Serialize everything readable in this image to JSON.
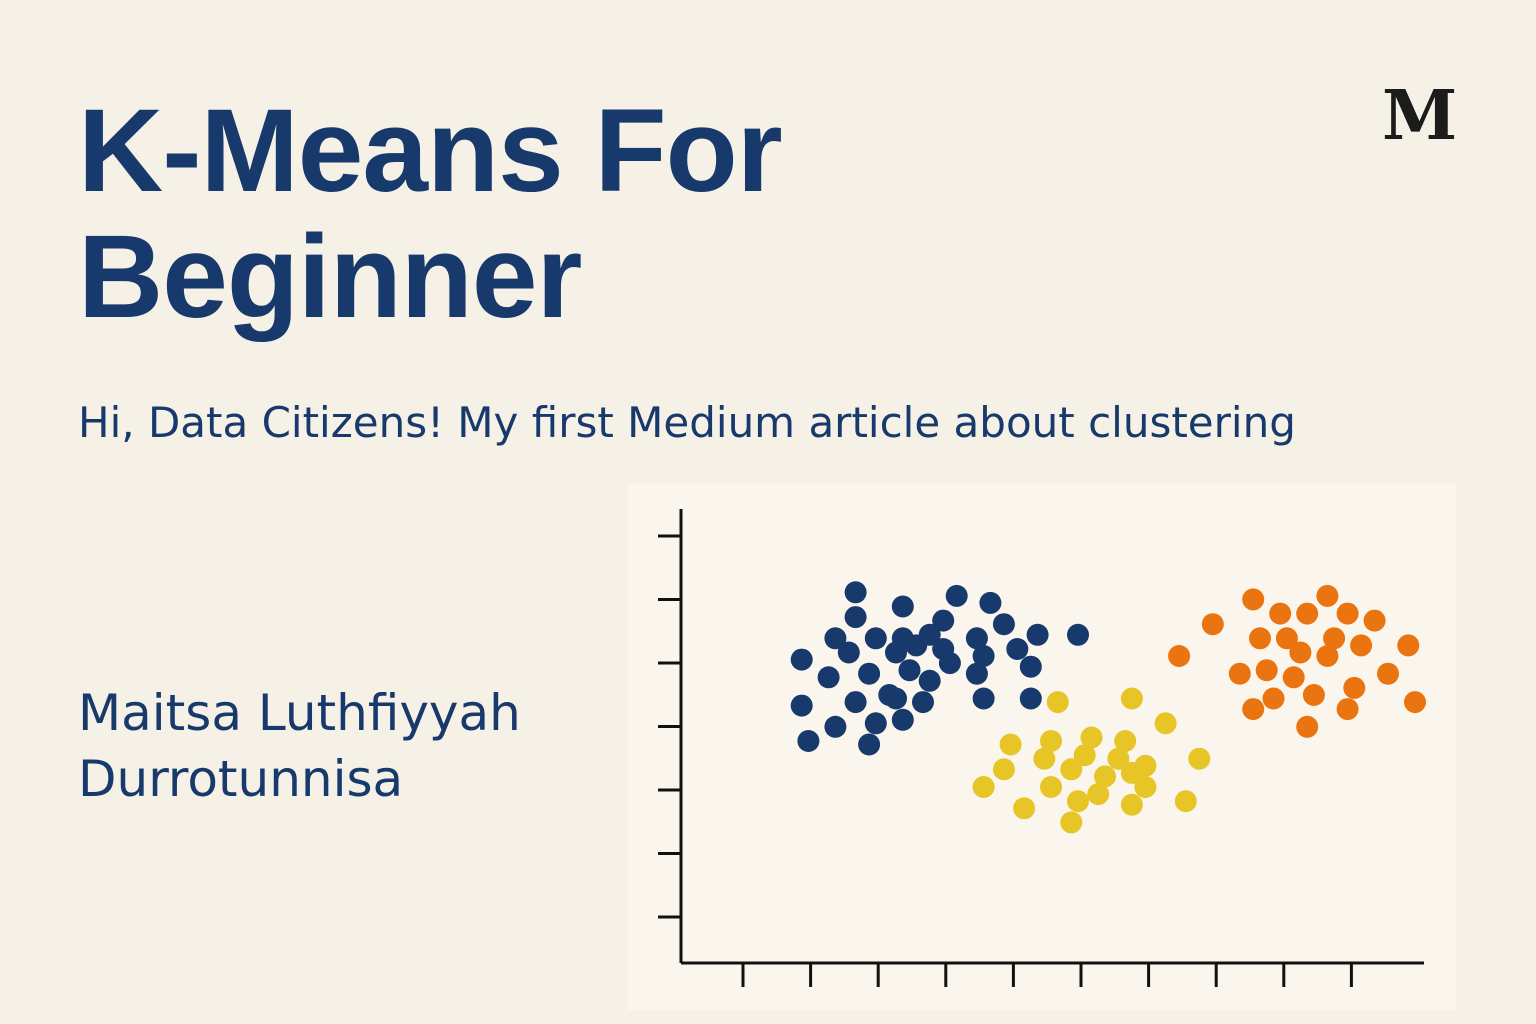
{
  "header": {
    "title_line1": "K-Means For",
    "title_line2": "Beginner",
    "subtitle": "Hi, Data Citizens! My first Medium article about clustering",
    "logo_letter": "M"
  },
  "author": {
    "line1": "Maitsa Luthfiyyah",
    "line2": "Durrotunnisa"
  },
  "colors": {
    "background": "#f6f1e7",
    "text": "#17396b",
    "cluster_navy": "#17396b",
    "cluster_yellow": "#e8c527",
    "cluster_orange": "#ea740f"
  },
  "chart_data": {
    "type": "scatter",
    "xlim": [
      0,
      100
    ],
    "ylim": [
      0,
      100
    ],
    "grid": false,
    "legend": "none",
    "series": [
      {
        "color": "#17396b",
        "points": [
          [
            17,
            92
          ],
          [
            24,
            88
          ],
          [
            32,
            91
          ],
          [
            37,
            89
          ],
          [
            17,
            85
          ],
          [
            30,
            84
          ],
          [
            39,
            83
          ],
          [
            14,
            79
          ],
          [
            20,
            79
          ],
          [
            24,
            79
          ],
          [
            28,
            80
          ],
          [
            35,
            79
          ],
          [
            44,
            80
          ],
          [
            50,
            80
          ],
          [
            9,
            73
          ],
          [
            16,
            75
          ],
          [
            23,
            75
          ],
          [
            26,
            77
          ],
          [
            30,
            76
          ],
          [
            36,
            74
          ],
          [
            41,
            76
          ],
          [
            31,
            72
          ],
          [
            13,
            68
          ],
          [
            19,
            69
          ],
          [
            25,
            70
          ],
          [
            28,
            67
          ],
          [
            35,
            69
          ],
          [
            43,
            71
          ],
          [
            22,
            63
          ],
          [
            9,
            60
          ],
          [
            17,
            61
          ],
          [
            23,
            62
          ],
          [
            27,
            61
          ],
          [
            36,
            62
          ],
          [
            43,
            62
          ],
          [
            24,
            56
          ],
          [
            14,
            54
          ],
          [
            20,
            55
          ],
          [
            10,
            50
          ],
          [
            19,
            49
          ]
        ]
      },
      {
        "color": "#e8c527",
        "points": [
          [
            47,
            61
          ],
          [
            58,
            62
          ],
          [
            63,
            55
          ],
          [
            40,
            49
          ],
          [
            46,
            50
          ],
          [
            52,
            51
          ],
          [
            57,
            50
          ],
          [
            45,
            45
          ],
          [
            51,
            46
          ],
          [
            56,
            45
          ],
          [
            68,
            45
          ],
          [
            60,
            43
          ],
          [
            39,
            42
          ],
          [
            49,
            42
          ],
          [
            54,
            40
          ],
          [
            58,
            41
          ],
          [
            36,
            37
          ],
          [
            46,
            37
          ],
          [
            60,
            37
          ],
          [
            53,
            35
          ],
          [
            42,
            31
          ],
          [
            50,
            33
          ],
          [
            58,
            32
          ],
          [
            66,
            33
          ],
          [
            49,
            27
          ]
        ]
      },
      {
        "color": "#ea740f",
        "points": [
          [
            76,
            90
          ],
          [
            87,
            91
          ],
          [
            80,
            86
          ],
          [
            84,
            86
          ],
          [
            90,
            86
          ],
          [
            94,
            84
          ],
          [
            70,
            83
          ],
          [
            77,
            79
          ],
          [
            81,
            79
          ],
          [
            88,
            79
          ],
          [
            92,
            77
          ],
          [
            99,
            77
          ],
          [
            65,
            74
          ],
          [
            83,
            75
          ],
          [
            87,
            74
          ],
          [
            74,
            69
          ],
          [
            78,
            70
          ],
          [
            82,
            68
          ],
          [
            96,
            69
          ],
          [
            91,
            65
          ],
          [
            85,
            63
          ],
          [
            79,
            62
          ],
          [
            90,
            59
          ],
          [
            100,
            61
          ],
          [
            76,
            59
          ],
          [
            84,
            54
          ]
        ]
      }
    ]
  }
}
